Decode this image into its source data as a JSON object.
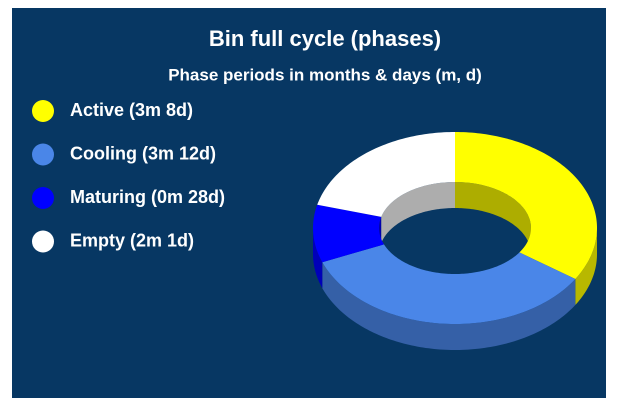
{
  "chart_data": {
    "type": "donut3d",
    "title": "Bin full cycle (phases)",
    "subtitle": "Phase periods in months & days (m, d)",
    "categories": [
      "Active (3m 8d)",
      "Cooling (3m 12d)",
      "Maturing (0m 28d)",
      "Empty (2m 1d)"
    ],
    "values": [
      98,
      102,
      28,
      61
    ],
    "colors": [
      "#ffff00",
      "#4a86e8",
      "#0000ff",
      "#ffffff"
    ],
    "legend": "left"
  }
}
